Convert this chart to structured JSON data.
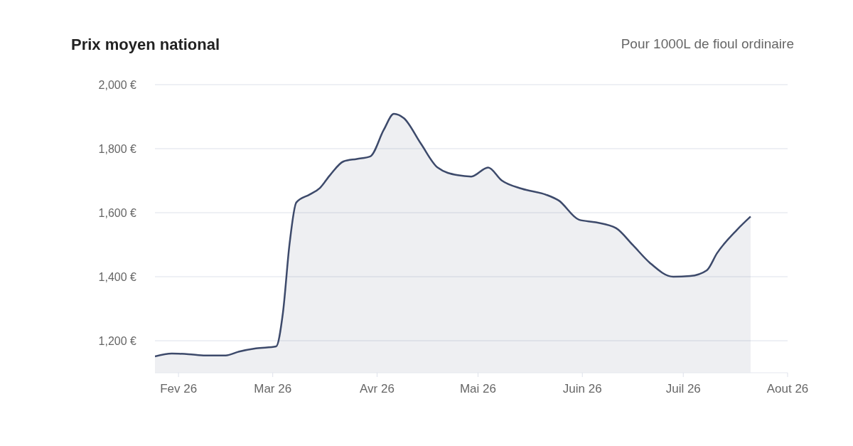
{
  "chart_data": {
    "type": "area",
    "title": "Prix moyen national",
    "subtitle": "Pour 1000L de fioul ordinaire",
    "x": [
      "2026-01-25",
      "2026-01-30",
      "2026-02-04",
      "2026-02-09",
      "2026-02-15",
      "2026-02-19",
      "2026-02-24",
      "2026-03-02",
      "2026-03-04",
      "2026-03-06",
      "2026-03-08",
      "2026-03-12",
      "2026-03-15",
      "2026-03-18",
      "2026-03-22",
      "2026-03-26",
      "2026-03-30",
      "2026-04-03",
      "2026-04-06",
      "2026-04-09",
      "2026-04-14",
      "2026-04-19",
      "2026-04-25",
      "2026-04-29",
      "2026-05-04",
      "2026-05-08",
      "2026-05-14",
      "2026-05-21",
      "2026-05-25",
      "2026-05-31",
      "2026-06-05",
      "2026-06-11",
      "2026-06-16",
      "2026-06-21",
      "2026-06-28",
      "2026-07-03",
      "2026-07-08",
      "2026-07-11",
      "2026-07-17",
      "2026-07-21"
    ],
    "series": [
      {
        "color": "#3d4a6b",
        "values": [
          1151,
          1160,
          1158,
          1154,
          1154,
          1166,
          1176,
          1182,
          1285,
          1503,
          1632,
          1657,
          1677,
          1717,
          1760,
          1768,
          1776,
          1859,
          1909,
          1895,
          1816,
          1741,
          1717,
          1713,
          1741,
          1701,
          1675,
          1657,
          1638,
          1578,
          1570,
          1552,
          1499,
          1444,
          1400,
          1402,
          1420,
          1473,
          1547,
          1588
        ]
      }
    ],
    "xlim": [
      "2026-01-25",
      "2026-08-01"
    ],
    "xticks": [
      {
        "value": "2026-02-01",
        "label": "Fev 26"
      },
      {
        "value": "2026-03-01",
        "label": "Mar 26"
      },
      {
        "value": "2026-04-01",
        "label": "Avr 26"
      },
      {
        "value": "2026-05-01",
        "label": "Mai 26"
      },
      {
        "value": "2026-06-01",
        "label": "Juin 26"
      },
      {
        "value": "2026-07-01",
        "label": "Juil 26"
      },
      {
        "value": "2026-08-01",
        "label": "Aout 26"
      }
    ],
    "ylim": [
      1100,
      2000
    ],
    "yticks": [
      {
        "value": 1200,
        "label": "1,200 €"
      },
      {
        "value": 1400,
        "label": "1,400 €"
      },
      {
        "value": 1600,
        "label": "1,600 €"
      },
      {
        "value": 1800,
        "label": "1,800 €"
      },
      {
        "value": 2000,
        "label": "2,000 €"
      }
    ],
    "grid": "y",
    "legend": false,
    "marker": "none",
    "line_style": "solid"
  }
}
